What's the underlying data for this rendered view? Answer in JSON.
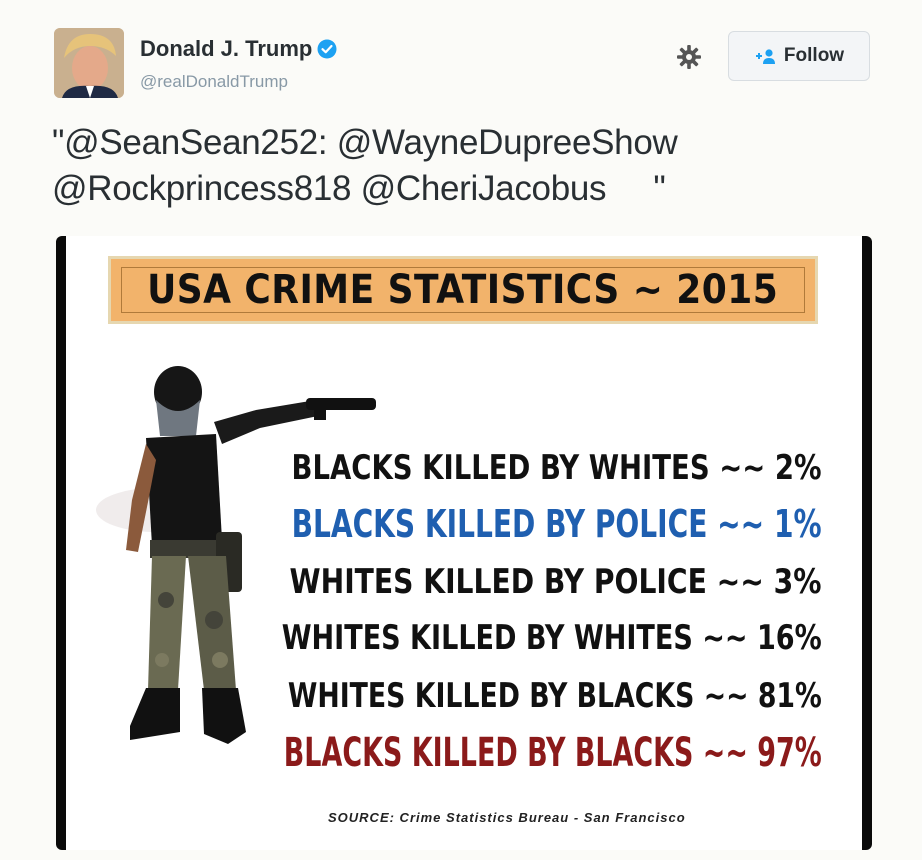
{
  "tweet": {
    "display_name": "Donald J. Trump",
    "handle": "@realDonaldTrump",
    "follow_label": "Follow",
    "text_line1": "\"@SeanSean252: @WayneDupreeShow",
    "text_line2": "@Rockprincess818 @CheriJacobus     \""
  },
  "image": {
    "title": "USA CRIME STATISTICS ~ 2015",
    "stats": [
      {
        "label": "BLACKS KILLED BY WHITES ~~ 2%",
        "color": "#111111"
      },
      {
        "label": "BLACKS KILLED BY POLICE ~~ 1%",
        "color": "#1f5fb0"
      },
      {
        "label": "WHITES KILLED BY POLICE ~~ 3%",
        "color": "#111111"
      },
      {
        "label": "WHITES KILLED BY WHITES ~~ 16%",
        "color": "#111111"
      },
      {
        "label": "WHITES KILLED BY BLACKS ~~ 81%",
        "color": "#111111"
      },
      {
        "label": "BLACKS KILLED BY BLACKS ~~ 97%",
        "color": "#8b1a1a"
      }
    ],
    "source": "SOURCE:  Crime Statistics Bureau - San Francisco"
  },
  "icons": {
    "verified": "verified-badge-icon",
    "settings": "gear-icon",
    "follow": "add-user-icon"
  },
  "colors": {
    "verified_blue": "#1da1f2",
    "title_bg": "#f2b36b"
  }
}
